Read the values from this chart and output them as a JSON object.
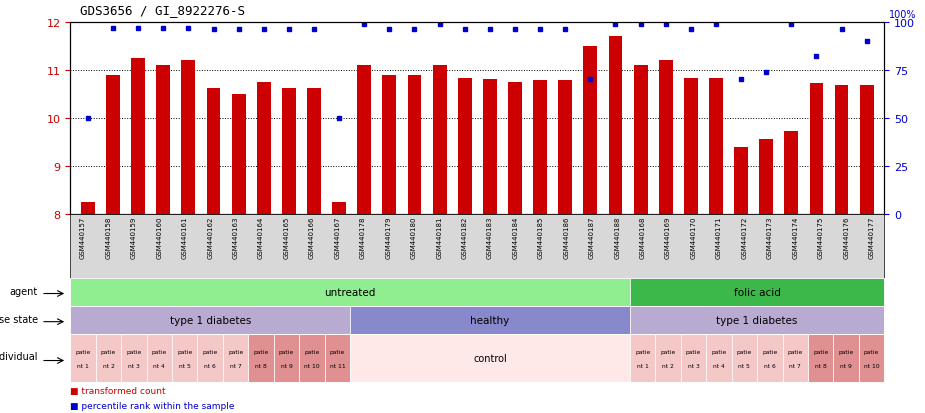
{
  "title": "GDS3656 / GI_8922276-S",
  "samples": [
    "GSM440157",
    "GSM440158",
    "GSM440159",
    "GSM440160",
    "GSM440161",
    "GSM440162",
    "GSM440163",
    "GSM440164",
    "GSM440165",
    "GSM440166",
    "GSM440167",
    "GSM440178",
    "GSM440179",
    "GSM440180",
    "GSM440181",
    "GSM440182",
    "GSM440183",
    "GSM440184",
    "GSM440185",
    "GSM440186",
    "GSM440187",
    "GSM440188",
    "GSM440168",
    "GSM440169",
    "GSM440170",
    "GSM440171",
    "GSM440172",
    "GSM440173",
    "GSM440174",
    "GSM440175",
    "GSM440176",
    "GSM440177"
  ],
  "bar_values": [
    8.25,
    10.9,
    11.25,
    11.1,
    11.2,
    10.62,
    10.5,
    10.75,
    10.62,
    10.62,
    8.25,
    11.1,
    10.9,
    10.9,
    11.1,
    10.82,
    10.8,
    10.75,
    10.78,
    10.78,
    11.5,
    11.7,
    11.1,
    11.2,
    10.82,
    10.82,
    9.4,
    9.55,
    9.72,
    10.72,
    10.68,
    10.68
  ],
  "percentile_values": [
    50,
    97,
    97,
    97,
    97,
    96,
    96,
    96,
    96,
    96,
    50,
    99,
    96,
    96,
    99,
    96,
    96,
    96,
    96,
    96,
    70,
    99,
    99,
    99,
    96,
    99,
    70,
    74,
    99,
    82,
    96,
    90
  ],
  "ylim_left": [
    8,
    12
  ],
  "ylim_right": [
    0,
    100
  ],
  "yticks_left": [
    8,
    9,
    10,
    11,
    12
  ],
  "yticks_right": [
    0,
    25,
    50,
    75,
    100
  ],
  "bar_color": "#cc0000",
  "dot_color": "#0000cc",
  "agent_spans": [
    {
      "label": "untreated",
      "start": 0,
      "end": 22,
      "color": "#90ee90"
    },
    {
      "label": "folic acid",
      "start": 22,
      "end": 32,
      "color": "#3cb84a"
    }
  ],
  "disease_spans": [
    {
      "label": "type 1 diabetes",
      "start": 0,
      "end": 11,
      "color": "#b8aad0"
    },
    {
      "label": "healthy",
      "start": 11,
      "end": 22,
      "color": "#8888cc"
    },
    {
      "label": "type 1 diabetes",
      "start": 22,
      "end": 32,
      "color": "#b8aad0"
    }
  ],
  "indiv_spans": [
    {
      "label": "patie\nnt 1",
      "start": 0,
      "end": 1,
      "color": "#f5c8c8",
      "small": true
    },
    {
      "label": "patie\nnt 2",
      "start": 1,
      "end": 2,
      "color": "#f5c8c8",
      "small": true
    },
    {
      "label": "patie\nnt 3",
      "start": 2,
      "end": 3,
      "color": "#f5c8c8",
      "small": true
    },
    {
      "label": "patie\nnt 4",
      "start": 3,
      "end": 4,
      "color": "#f5c8c8",
      "small": true
    },
    {
      "label": "patie\nnt 5",
      "start": 4,
      "end": 5,
      "color": "#f5c8c8",
      "small": true
    },
    {
      "label": "patie\nnt 6",
      "start": 5,
      "end": 6,
      "color": "#f5c8c8",
      "small": true
    },
    {
      "label": "patie\nnt 7",
      "start": 6,
      "end": 7,
      "color": "#f5c8c8",
      "small": true
    },
    {
      "label": "patie\nnt 8",
      "start": 7,
      "end": 8,
      "color": "#e09090",
      "small": true
    },
    {
      "label": "patie\nnt 9",
      "start": 8,
      "end": 9,
      "color": "#e09090",
      "small": true
    },
    {
      "label": "patie\nnt 10",
      "start": 9,
      "end": 10,
      "color": "#e09090",
      "small": true
    },
    {
      "label": "patie\nnt 11",
      "start": 10,
      "end": 11,
      "color": "#e09090",
      "small": true
    },
    {
      "label": "control",
      "start": 11,
      "end": 22,
      "color": "#ffe8e8",
      "small": false
    },
    {
      "label": "patie\nnt 1",
      "start": 22,
      "end": 23,
      "color": "#f5c8c8",
      "small": true
    },
    {
      "label": "patie\nnt 2",
      "start": 23,
      "end": 24,
      "color": "#f5c8c8",
      "small": true
    },
    {
      "label": "patie\nnt 3",
      "start": 24,
      "end": 25,
      "color": "#f5c8c8",
      "small": true
    },
    {
      "label": "patie\nnt 4",
      "start": 25,
      "end": 26,
      "color": "#f5c8c8",
      "small": true
    },
    {
      "label": "patie\nnt 5",
      "start": 26,
      "end": 27,
      "color": "#f5c8c8",
      "small": true
    },
    {
      "label": "patie\nnt 6",
      "start": 27,
      "end": 28,
      "color": "#f5c8c8",
      "small": true
    },
    {
      "label": "patie\nnt 7",
      "start": 28,
      "end": 29,
      "color": "#f5c8c8",
      "small": true
    },
    {
      "label": "patie\nnt 8",
      "start": 29,
      "end": 30,
      "color": "#e09090",
      "small": true
    },
    {
      "label": "patie\nnt 9",
      "start": 30,
      "end": 31,
      "color": "#e09090",
      "small": true
    },
    {
      "label": "patie\nnt 10",
      "start": 31,
      "end": 32,
      "color": "#e09090",
      "small": true
    }
  ],
  "legend": [
    {
      "color": "#cc0000",
      "label": "transformed count"
    },
    {
      "color": "#0000cc",
      "label": "percentile rank within the sample"
    }
  ]
}
